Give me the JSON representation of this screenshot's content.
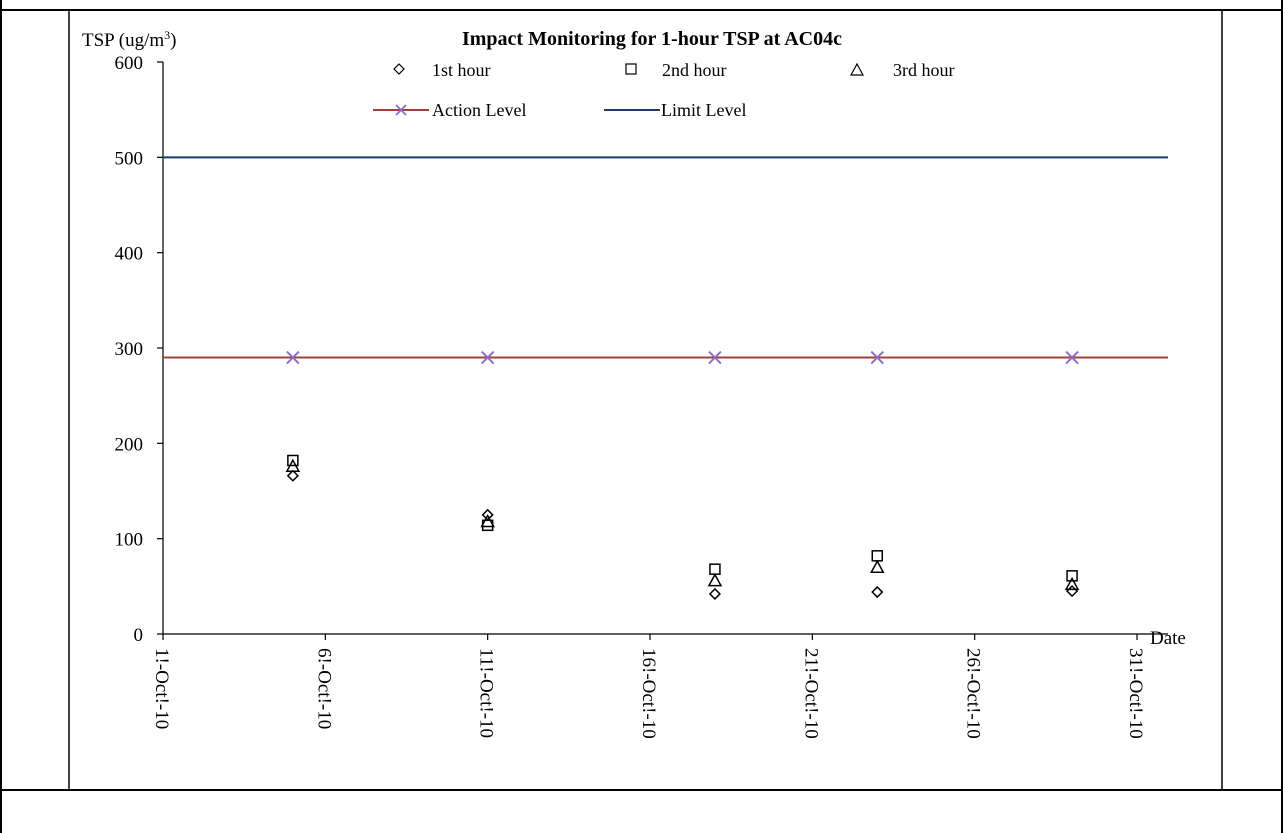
{
  "chart_data": {
    "type": "scatter",
    "title": "Impact Monitoring for 1-hour TSP at AC04c",
    "ylabel_main": "TSP (ug/m",
    "ylabel_sup": "3",
    "ylabel_end": ")",
    "xlabel": "Date",
    "ylim": [
      0,
      600
    ],
    "yticks": [
      "0",
      "100",
      "200",
      "300",
      "400",
      "500",
      "600"
    ],
    "yticks_values": [
      0,
      100,
      200,
      300,
      400,
      500,
      600
    ],
    "xlim_day": [
      1,
      31
    ],
    "xticks": [
      "1!-Oct!-10",
      "6!-Oct!-10",
      "11!-Oct!-10",
      "16!-Oct!-10",
      "21!-Oct!-10",
      "26!-Oct!-10",
      "31!-Oct!-10"
    ],
    "xticks_day": [
      1,
      6,
      11,
      16,
      21,
      26,
      31
    ],
    "grid": false,
    "legend_placement": "top",
    "series": [
      {
        "name": "1st hour",
        "marker": "diamond",
        "x_day": [
          5,
          11,
          18,
          23,
          29
        ],
        "values": [
          166,
          125,
          42,
          44,
          45
        ]
      },
      {
        "name": "2nd hour",
        "marker": "square",
        "x_day": [
          5,
          11,
          18,
          23,
          29
        ],
        "values": [
          182,
          114,
          68,
          82,
          61
        ]
      },
      {
        "name": "3rd hour",
        "marker": "triangle",
        "x_day": [
          5,
          11,
          18,
          23,
          29
        ],
        "values": [
          176,
          118,
          56,
          70,
          52
        ]
      },
      {
        "name": "Action Level",
        "marker": "x-line",
        "color": "#a0413c",
        "marker_color": "#8b6fc4",
        "x_day": [
          5,
          11,
          18,
          23,
          29
        ],
        "values": [
          290,
          290,
          290,
          290,
          290
        ]
      },
      {
        "name": "Limit Level",
        "marker": "line",
        "color": "#1f3a6e",
        "values": [
          500
        ]
      }
    ]
  }
}
